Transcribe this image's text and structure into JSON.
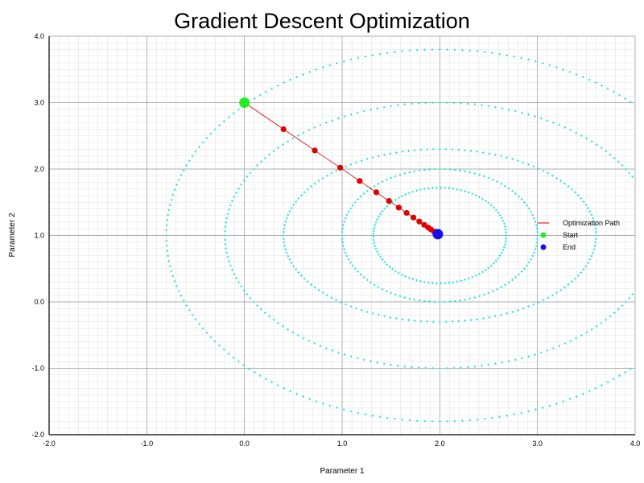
{
  "chart_data": {
    "type": "scatter",
    "title": "Gradient Descent Optimization",
    "xlabel": "Parameter 1",
    "ylabel": "Parameter 2",
    "xlim": [
      -2.0,
      4.0
    ],
    "ylim": [
      -2.0,
      4.0
    ],
    "x_ticks": [
      -2.0,
      -1.0,
      0.0,
      1.0,
      2.0,
      3.0,
      4.0
    ],
    "y_ticks": [
      -2.0,
      -1.0,
      0.0,
      1.0,
      2.0,
      3.0,
      4.0
    ],
    "x_tick_labels": [
      "-2.0",
      "-1.0",
      "0.0",
      "1.0",
      "2.0",
      "3.0",
      "4.0"
    ],
    "y_tick_labels": [
      "-2.0",
      "-1.0",
      "0.0",
      "1.0",
      "2.0",
      "3.0",
      "4.0"
    ],
    "grid": "major-and-minor",
    "legend_position": "right",
    "contour": {
      "center": [
        2.0,
        1.0
      ],
      "color": "#33dddd",
      "ellipses": [
        {
          "rx": 0.68,
          "ry": 0.72
        },
        {
          "rx": 1.0,
          "ry": 1.0
        },
        {
          "rx": 1.6,
          "ry": 1.3
        },
        {
          "rx": 2.2,
          "ry": 2.0
        },
        {
          "rx": 2.8,
          "ry": 2.8
        }
      ]
    },
    "series": [
      {
        "name": "Optimization Path",
        "color": "#e00000",
        "x": [
          0.0,
          0.4,
          0.72,
          0.98,
          1.18,
          1.35,
          1.48,
          1.58,
          1.66,
          1.73,
          1.79,
          1.84,
          1.88,
          1.91,
          1.94,
          1.96,
          1.98
        ],
        "y": [
          3.0,
          2.6,
          2.28,
          2.02,
          1.82,
          1.65,
          1.52,
          1.42,
          1.34,
          1.27,
          1.21,
          1.16,
          1.12,
          1.09,
          1.06,
          1.04,
          1.02
        ]
      },
      {
        "name": "Start",
        "color": "#22ee22",
        "x": [
          0.0
        ],
        "y": [
          3.0
        ]
      },
      {
        "name": "End",
        "color": "#1010ee",
        "x": [
          1.98
        ],
        "y": [
          1.02
        ]
      }
    ]
  }
}
